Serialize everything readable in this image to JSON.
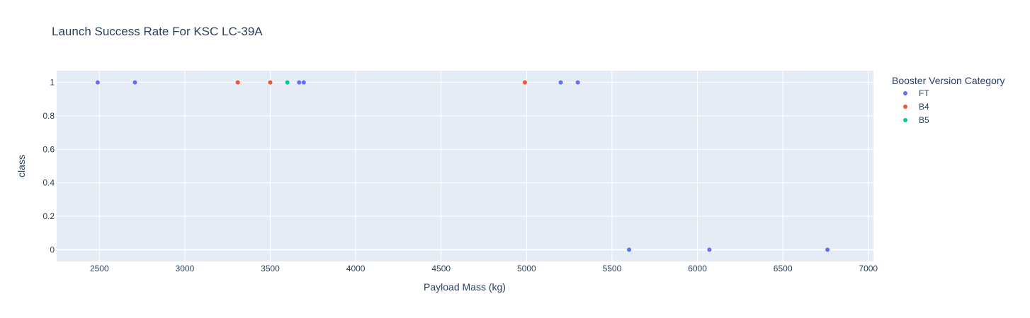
{
  "chart_data": {
    "type": "scatter",
    "title": "Launch Success Rate For KSC LC-39A",
    "xlabel": "Payload Mass (kg)",
    "ylabel": "class",
    "xlim": [
      2250,
      7030
    ],
    "ylim": [
      -0.07,
      1.07
    ],
    "x_ticks": [
      2500,
      3000,
      3500,
      4000,
      4500,
      5000,
      5500,
      6000,
      6500,
      7000
    ],
    "y_ticks": [
      0,
      0.2,
      0.4,
      0.6,
      0.8,
      1
    ],
    "y_tick_labels": [
      "0",
      "0.2",
      "0.4",
      "0.6",
      "0.8",
      "1"
    ],
    "grid": true,
    "legend": {
      "title": "Booster Version Category",
      "placement": "top-right"
    },
    "series": [
      {
        "name": "FT",
        "color": "#636efa",
        "points": [
          [
            2490,
            1
          ],
          [
            2708,
            1
          ],
          [
            3669,
            1
          ],
          [
            3696,
            1
          ],
          [
            5200,
            1
          ],
          [
            5300,
            1
          ],
          [
            5600,
            0
          ],
          [
            6070,
            0
          ],
          [
            6761,
            0
          ]
        ]
      },
      {
        "name": "B4",
        "color": "#ef553b",
        "points": [
          [
            3310,
            1
          ],
          [
            3500,
            1
          ],
          [
            4990,
            1
          ]
        ]
      },
      {
        "name": "B5",
        "color": "#00cc96",
        "points": [
          [
            3600,
            1
          ]
        ]
      }
    ]
  }
}
